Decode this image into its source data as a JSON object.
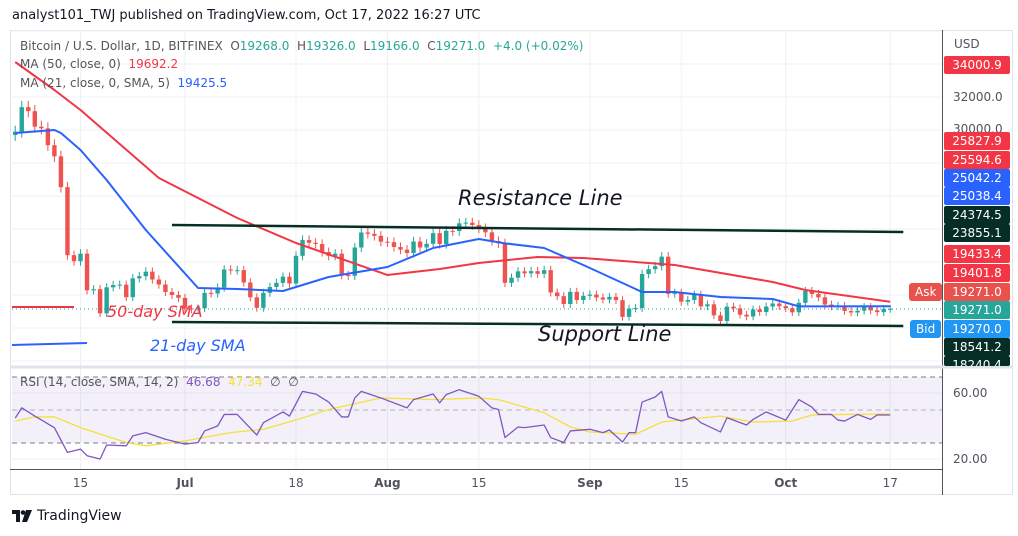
{
  "header": {
    "published": "analyst101_TWJ published on TradingView.com, Oct 17, 2022 16:27 UTC"
  },
  "legend": {
    "symbol": "Bitcoin / U.S. Dollar, 1D, BITFINEX",
    "o_label": "O",
    "o": "19268.0",
    "h_label": "H",
    "h": "19326.0",
    "l_label": "L",
    "l": "19166.0",
    "c_label": "C",
    "c": "19271.0",
    "change": "+4.0 (+0.02%)",
    "ma50_label": "MA (50, close, 0)",
    "ma50_value": "19692.2",
    "ma21_label": "MA (21, close, 0, SMA, 5)",
    "ma21_value": "19425.5",
    "rsi_label": "RSI (14, close, SMA, 14, 2)",
    "rsi_value": "46.68",
    "rsi_sma_value": "47.34",
    "rsi_na1": "∅",
    "rsi_na2": "∅"
  },
  "price_axis": {
    "currency": "USD",
    "ticks": [
      "32000.0",
      "30000.0"
    ],
    "labels": [
      {
        "text": "34000.9",
        "color": "#f23645"
      },
      {
        "text": "25827.9",
        "color": "#f23645"
      },
      {
        "text": "25594.6",
        "color": "#f23645"
      },
      {
        "text": "25042.2",
        "color": "#2962ff"
      },
      {
        "text": "25038.4",
        "color": "#2962ff"
      },
      {
        "text": "24374.5",
        "color": "#062e27"
      },
      {
        "text": "23855.1",
        "color": "#062e27"
      },
      {
        "text": "19433.4",
        "color": "#f23645"
      },
      {
        "text": "19401.8",
        "color": "#f23645"
      },
      {
        "text": "19271.0",
        "color": "#e9514c"
      },
      {
        "text": "19271.0",
        "color": "#26a69a"
      },
      {
        "text": "19270.0",
        "color": "#2196f3"
      },
      {
        "text": "18541.2",
        "color": "#062e27"
      },
      {
        "text": "18240.4",
        "color": "#062e27"
      }
    ],
    "ask_label": "Ask",
    "bid_label": "Bid",
    "rsi_ticks": [
      "60.00",
      "20.00"
    ]
  },
  "annotations": {
    "resistance": "Resistance Line",
    "support": "Support Line",
    "sma50": "50-day SMA",
    "sma21": "21-day SMA"
  },
  "footer": {
    "brand": "TradingView"
  },
  "colors": {
    "up": "#26a69a",
    "down": "#ef5350",
    "ma50": "#f23645",
    "ma21": "#2962ff",
    "rsi": "#7e57c2",
    "rsi_sma": "#f5e13d",
    "trendline": "#062e27"
  },
  "chart_data": {
    "type": "candlestick",
    "title": "Bitcoin / U.S. Dollar, 1D, BITFINEX",
    "y_axis": "price (USD), right side",
    "time_ticks": [
      {
        "label": "15",
        "date": "2022-06-15"
      },
      {
        "label": "Jul",
        "date": "2022-07-01"
      },
      {
        "label": "18",
        "date": "2022-07-18"
      },
      {
        "label": "Aug",
        "date": "2022-08-01"
      },
      {
        "label": "15",
        "date": "2022-08-15"
      },
      {
        "label": "Sep",
        "date": "2022-09-01"
      },
      {
        "label": "15",
        "date": "2022-09-15"
      },
      {
        "label": "Oct",
        "date": "2022-10-01"
      },
      {
        "label": "17",
        "date": "2022-10-17"
      }
    ],
    "closes": [
      [
        "2022-06-05",
        29900
      ],
      [
        "2022-06-06",
        31370
      ],
      [
        "2022-06-07",
        31130
      ],
      [
        "2022-06-08",
        30200
      ],
      [
        "2022-06-09",
        30100
      ],
      [
        "2022-06-10",
        29090
      ],
      [
        "2022-06-11",
        28420
      ],
      [
        "2022-06-12",
        26570
      ],
      [
        "2022-06-13",
        22490
      ],
      [
        "2022-06-14",
        22130
      ],
      [
        "2022-06-15",
        22580
      ],
      [
        "2022-06-16",
        20380
      ],
      [
        "2022-06-17",
        20450
      ],
      [
        "2022-06-18",
        19000
      ],
      [
        "2022-06-19",
        20560
      ],
      [
        "2022-06-20",
        20700
      ],
      [
        "2022-06-21",
        20720
      ],
      [
        "2022-06-22",
        19970
      ],
      [
        "2022-06-23",
        21100
      ],
      [
        "2022-06-24",
        21230
      ],
      [
        "2022-06-25",
        21500
      ],
      [
        "2022-06-26",
        21030
      ],
      [
        "2022-06-27",
        20730
      ],
      [
        "2022-06-28",
        20280
      ],
      [
        "2022-06-29",
        20100
      ],
      [
        "2022-06-30",
        19930
      ],
      [
        "2022-07-01",
        19290
      ],
      [
        "2022-07-02",
        19240
      ],
      [
        "2022-07-03",
        19300
      ],
      [
        "2022-07-04",
        20230
      ],
      [
        "2022-07-05",
        20190
      ],
      [
        "2022-07-06",
        20550
      ],
      [
        "2022-07-07",
        21630
      ],
      [
        "2022-07-08",
        21590
      ],
      [
        "2022-07-09",
        21590
      ],
      [
        "2022-07-10",
        20850
      ],
      [
        "2022-07-11",
        19960
      ],
      [
        "2022-07-12",
        19330
      ],
      [
        "2022-07-13",
        20230
      ],
      [
        "2022-07-14",
        20580
      ],
      [
        "2022-07-15",
        20830
      ],
      [
        "2022-07-16",
        21200
      ],
      [
        "2022-07-17",
        20790
      ],
      [
        "2022-07-18",
        22450
      ],
      [
        "2022-07-19",
        23400
      ],
      [
        "2022-07-20",
        23230
      ],
      [
        "2022-07-21",
        23160
      ],
      [
        "2022-07-22",
        22680
      ],
      [
        "2022-07-23",
        22450
      ],
      [
        "2022-07-24",
        22580
      ],
      [
        "2022-07-25",
        21300
      ],
      [
        "2022-07-26",
        21250
      ],
      [
        "2022-07-27",
        22950
      ],
      [
        "2022-07-28",
        23850
      ],
      [
        "2022-07-29",
        23770
      ],
      [
        "2022-07-30",
        23650
      ],
      [
        "2022-07-31",
        23300
      ],
      [
        "2022-08-01",
        23270
      ],
      [
        "2022-08-02",
        22980
      ],
      [
        "2022-08-03",
        22820
      ],
      [
        "2022-08-04",
        22620
      ],
      [
        "2022-08-05",
        23310
      ],
      [
        "2022-08-06",
        22950
      ],
      [
        "2022-08-07",
        23170
      ],
      [
        "2022-08-08",
        23810
      ],
      [
        "2022-08-09",
        23160
      ],
      [
        "2022-08-10",
        23950
      ],
      [
        "2022-08-11",
        23940
      ],
      [
        "2022-08-12",
        24400
      ],
      [
        "2022-08-13",
        24440
      ],
      [
        "2022-08-14",
        24300
      ],
      [
        "2022-08-15",
        24100
      ],
      [
        "2022-08-16",
        23860
      ],
      [
        "2022-08-17",
        23340
      ],
      [
        "2022-08-18",
        23200
      ],
      [
        "2022-08-19",
        20830
      ],
      [
        "2022-08-20",
        21140
      ],
      [
        "2022-08-21",
        21520
      ],
      [
        "2022-08-22",
        21400
      ],
      [
        "2022-08-23",
        21530
      ],
      [
        "2022-08-24",
        21370
      ],
      [
        "2022-08-25",
        21590
      ],
      [
        "2022-08-26",
        20250
      ],
      [
        "2022-08-27",
        20030
      ],
      [
        "2022-08-28",
        19560
      ],
      [
        "2022-08-29",
        20290
      ],
      [
        "2022-08-30",
        19800
      ],
      [
        "2022-08-31",
        20050
      ],
      [
        "2022-09-01",
        20130
      ],
      [
        "2022-09-02",
        19950
      ],
      [
        "2022-09-03",
        19830
      ],
      [
        "2022-09-04",
        19990
      ],
      [
        "2022-09-05",
        19790
      ],
      [
        "2022-09-06",
        18790
      ],
      [
        "2022-09-07",
        19290
      ],
      [
        "2022-09-08",
        19320
      ],
      [
        "2022-09-09",
        21360
      ],
      [
        "2022-09-10",
        21650
      ],
      [
        "2022-09-11",
        21830
      ],
      [
        "2022-09-12",
        22400
      ],
      [
        "2022-09-13",
        20170
      ],
      [
        "2022-09-14",
        20230
      ],
      [
        "2022-09-15",
        19700
      ],
      [
        "2022-09-16",
        19800
      ],
      [
        "2022-09-17",
        20120
      ],
      [
        "2022-09-18",
        19420
      ],
      [
        "2022-09-19",
        19540
      ],
      [
        "2022-09-20",
        18880
      ],
      [
        "2022-09-21",
        18540
      ],
      [
        "2022-09-22",
        19400
      ],
      [
        "2022-09-23",
        19300
      ],
      [
        "2022-09-24",
        18920
      ],
      [
        "2022-09-25",
        18810
      ],
      [
        "2022-09-26",
        19230
      ],
      [
        "2022-09-27",
        19080
      ],
      [
        "2022-09-28",
        19410
      ],
      [
        "2022-09-29",
        19590
      ],
      [
        "2022-09-30",
        19430
      ],
      [
        "2022-10-01",
        19310
      ],
      [
        "2022-10-02",
        19060
      ],
      [
        "2022-10-03",
        19630
      ],
      [
        "2022-10-04",
        20340
      ],
      [
        "2022-10-05",
        20160
      ],
      [
        "2022-10-06",
        19960
      ],
      [
        "2022-10-07",
        19530
      ],
      [
        "2022-10-08",
        19420
      ],
      [
        "2022-10-09",
        19450
      ],
      [
        "2022-10-10",
        19140
      ],
      [
        "2022-10-11",
        19050
      ],
      [
        "2022-10-12",
        19160
      ],
      [
        "2022-10-13",
        19380
      ],
      [
        "2022-10-14",
        19180
      ],
      [
        "2022-10-15",
        19070
      ],
      [
        "2022-10-16",
        19268
      ],
      [
        "2022-10-17",
        19271
      ]
    ],
    "ma50": [
      [
        "2022-06-05",
        34080
      ],
      [
        "2022-06-11",
        32400
      ],
      [
        "2022-06-15",
        31200
      ],
      [
        "2022-06-27",
        27120
      ],
      [
        "2022-07-09",
        24720
      ],
      [
        "2022-07-18",
        23220
      ],
      [
        "2022-08-01",
        21300
      ],
      [
        "2022-08-09",
        21660
      ],
      [
        "2022-08-15",
        22020
      ],
      [
        "2022-08-24",
        22380
      ],
      [
        "2022-08-31",
        22320
      ],
      [
        "2022-09-14",
        21900
      ],
      [
        "2022-09-29",
        20880
      ],
      [
        "2022-10-04",
        20400
      ],
      [
        "2022-10-17",
        19692
      ]
    ],
    "ma21": [
      [
        "2022-06-05",
        29820
      ],
      [
        "2022-06-11",
        30000
      ],
      [
        "2022-06-12",
        29820
      ],
      [
        "2022-06-15",
        28800
      ],
      [
        "2022-06-19",
        27000
      ],
      [
        "2022-06-25",
        24000
      ],
      [
        "2022-07-03",
        20520
      ],
      [
        "2022-07-09",
        20460
      ],
      [
        "2022-07-16",
        20340
      ],
      [
        "2022-07-23",
        21180
      ],
      [
        "2022-08-01",
        21780
      ],
      [
        "2022-08-08",
        22920
      ],
      [
        "2022-08-15",
        23460
      ],
      [
        "2022-08-19",
        23200
      ],
      [
        "2022-08-25",
        22920
      ],
      [
        "2022-08-31",
        21900
      ],
      [
        "2022-09-09",
        20280
      ],
      [
        "2022-09-14",
        20280
      ],
      [
        "2022-09-21",
        19980
      ],
      [
        "2022-09-29",
        19860
      ],
      [
        "2022-10-03",
        19420
      ],
      [
        "2022-10-17",
        19425
      ]
    ],
    "rsi": {
      "levels": [
        70,
        50,
        30
      ],
      "ylim": [
        10,
        80
      ],
      "values": [
        [
          "2022-06-05",
          44.8
        ],
        [
          "2022-06-06",
          51
        ],
        [
          "2022-06-08",
          46
        ],
        [
          "2022-06-11",
          39
        ],
        [
          "2022-06-13",
          24
        ],
        [
          "2022-06-15",
          26
        ],
        [
          "2022-06-16",
          22
        ],
        [
          "2022-06-18",
          20
        ],
        [
          "2022-06-19",
          28.5
        ],
        [
          "2022-06-22",
          28
        ],
        [
          "2022-06-23",
          34
        ],
        [
          "2022-06-25",
          36
        ],
        [
          "2022-06-28",
          32
        ],
        [
          "2022-07-01",
          29
        ],
        [
          "2022-07-03",
          30
        ],
        [
          "2022-07-04",
          37
        ],
        [
          "2022-07-06",
          40
        ],
        [
          "2022-07-07",
          47
        ],
        [
          "2022-07-09",
          47
        ],
        [
          "2022-07-12",
          34.5
        ],
        [
          "2022-07-13",
          42
        ],
        [
          "2022-07-16",
          48.5
        ],
        [
          "2022-07-17",
          46
        ],
        [
          "2022-07-19",
          61
        ],
        [
          "2022-07-21",
          59.4
        ],
        [
          "2022-07-23",
          54.5
        ],
        [
          "2022-07-25",
          45.5
        ],
        [
          "2022-07-26",
          45.5
        ],
        [
          "2022-07-27",
          57
        ],
        [
          "2022-07-28",
          61
        ],
        [
          "2022-07-31",
          57
        ],
        [
          "2022-08-04",
          51
        ],
        [
          "2022-08-05",
          56
        ],
        [
          "2022-08-08",
          59.4
        ],
        [
          "2022-08-09",
          54
        ],
        [
          "2022-08-10",
          59
        ],
        [
          "2022-08-12",
          62
        ],
        [
          "2022-08-15",
          58
        ],
        [
          "2022-08-17",
          51
        ],
        [
          "2022-08-18",
          50
        ],
        [
          "2022-08-19",
          33
        ],
        [
          "2022-08-21",
          39.4
        ],
        [
          "2022-08-22",
          39
        ],
        [
          "2022-08-25",
          40.6
        ],
        [
          "2022-08-26",
          33
        ],
        [
          "2022-08-28",
          30
        ],
        [
          "2022-08-29",
          37
        ],
        [
          "2022-09-01",
          38
        ],
        [
          "2022-09-03",
          36
        ],
        [
          "2022-09-04",
          37.6
        ],
        [
          "2022-09-06",
          30.3
        ],
        [
          "2022-09-07",
          36
        ],
        [
          "2022-09-08",
          36
        ],
        [
          "2022-09-09",
          54.5
        ],
        [
          "2022-09-11",
          57.6
        ],
        [
          "2022-09-12",
          61
        ],
        [
          "2022-09-13",
          45.5
        ],
        [
          "2022-09-15",
          43
        ],
        [
          "2022-09-17",
          45.5
        ],
        [
          "2022-09-18",
          42
        ],
        [
          "2022-09-21",
          36.4
        ],
        [
          "2022-09-22",
          45
        ],
        [
          "2022-09-25",
          40.6
        ],
        [
          "2022-09-26",
          44
        ],
        [
          "2022-09-28",
          48.5
        ],
        [
          "2022-10-01",
          43.6
        ],
        [
          "2022-10-03",
          56
        ],
        [
          "2022-10-05",
          51.5
        ],
        [
          "2022-10-06",
          47
        ],
        [
          "2022-10-08",
          47
        ],
        [
          "2022-10-09",
          43.6
        ],
        [
          "2022-10-10",
          43
        ],
        [
          "2022-10-12",
          47
        ],
        [
          "2022-10-14",
          44
        ],
        [
          "2022-10-15",
          46.7
        ],
        [
          "2022-10-17",
          46.68
        ]
      ],
      "sma": [
        [
          "2022-06-05",
          43
        ],
        [
          "2022-06-08",
          45.5
        ],
        [
          "2022-06-11",
          45.5
        ],
        [
          "2022-06-15",
          39
        ],
        [
          "2022-06-22",
          30
        ],
        [
          "2022-06-25",
          28
        ],
        [
          "2022-07-01",
          31
        ],
        [
          "2022-07-08",
          36
        ],
        [
          "2022-07-13",
          38
        ],
        [
          "2022-07-18",
          43.6
        ],
        [
          "2022-07-23",
          50
        ],
        [
          "2022-07-31",
          57
        ],
        [
          "2022-08-08",
          56
        ],
        [
          "2022-08-15",
          57
        ],
        [
          "2022-08-18",
          56
        ],
        [
          "2022-08-25",
          48
        ],
        [
          "2022-08-29",
          39.4
        ],
        [
          "2022-09-01",
          36.4
        ],
        [
          "2022-09-08",
          35
        ],
        [
          "2022-09-12",
          42.4
        ],
        [
          "2022-09-21",
          46
        ],
        [
          "2022-09-26",
          42.4
        ],
        [
          "2022-10-02",
          43
        ],
        [
          "2022-10-05",
          46.7
        ],
        [
          "2022-10-17",
          47.34
        ]
      ]
    },
    "trendlines": {
      "resistance": [
        [
          "2022-06-29",
          24300
        ],
        [
          "2022-10-19",
          23880
        ]
      ],
      "support": [
        [
          "2022-06-29",
          18480
        ],
        [
          "2022-10-19",
          18240
        ]
      ]
    }
  }
}
